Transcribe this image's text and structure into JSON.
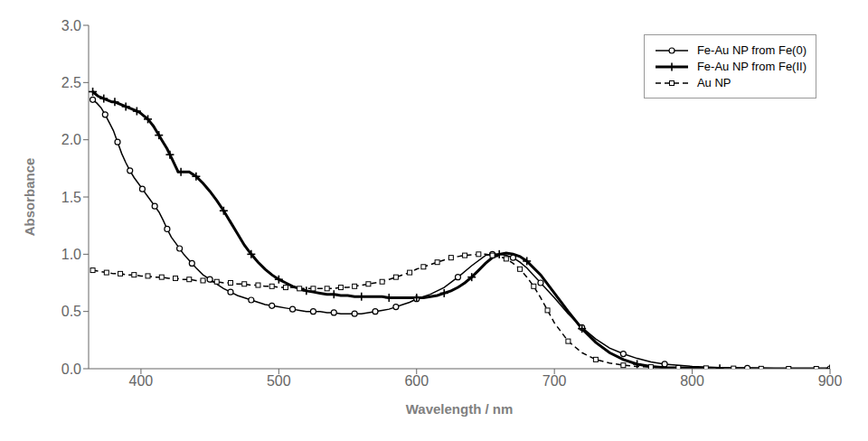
{
  "chart_data": {
    "type": "line",
    "xlabel": "Wavelength / nm",
    "ylabel": "Absorbance",
    "xlim": [
      362,
      900
    ],
    "ylim": [
      0.0,
      3.0
    ],
    "xticks": [
      400,
      500,
      600,
      700,
      800,
      900
    ],
    "yticks": [
      {
        "value": 0.0,
        "label": "0.0"
      },
      0.5,
      {
        "value": 1.0,
        "label": "1.0"
      },
      1.5,
      {
        "value": 2.0,
        "label": "2.0"
      },
      2.5,
      {
        "value": 3.0,
        "label": "3.0"
      }
    ],
    "legend": "upper right",
    "series": [
      {
        "name": "Fe-Au NP from Fe(0)",
        "color": "#000000",
        "marker": "circle",
        "line_style": "solid",
        "x": [
          365,
          368,
          371,
          374,
          377,
          380,
          383,
          386,
          389,
          392,
          395,
          398,
          401,
          404,
          407,
          410,
          413,
          416,
          419,
          422,
          425,
          428,
          431,
          434,
          437,
          440,
          445,
          450,
          455,
          460,
          465,
          470,
          475,
          480,
          485,
          490,
          495,
          500,
          505,
          510,
          515,
          520,
          525,
          530,
          535,
          540,
          545,
          550,
          555,
          560,
          565,
          570,
          575,
          580,
          585,
          590,
          595,
          600,
          610,
          620,
          630,
          640,
          650,
          655,
          660,
          665,
          670,
          675,
          680,
          690,
          700,
          710,
          720,
          730,
          740,
          750,
          760,
          770,
          780,
          800,
          820,
          840,
          860,
          880,
          900
        ],
        "values": [
          2.35,
          2.32,
          2.28,
          2.22,
          2.15,
          2.08,
          1.98,
          1.88,
          1.8,
          1.73,
          1.67,
          1.62,
          1.57,
          1.52,
          1.47,
          1.42,
          1.37,
          1.3,
          1.22,
          1.15,
          1.1,
          1.05,
          1.0,
          0.96,
          0.92,
          0.88,
          0.82,
          0.78,
          0.74,
          0.7,
          0.67,
          0.64,
          0.62,
          0.6,
          0.58,
          0.56,
          0.55,
          0.54,
          0.53,
          0.52,
          0.51,
          0.5,
          0.5,
          0.5,
          0.49,
          0.49,
          0.48,
          0.48,
          0.48,
          0.48,
          0.49,
          0.5,
          0.51,
          0.52,
          0.54,
          0.56,
          0.58,
          0.61,
          0.65,
          0.71,
          0.8,
          0.9,
          0.99,
          1.0,
          1.0,
          0.99,
          0.97,
          0.93,
          0.88,
          0.75,
          0.62,
          0.48,
          0.36,
          0.26,
          0.18,
          0.13,
          0.09,
          0.06,
          0.04,
          0.02,
          0.01,
          0.005,
          0.002,
          0.001,
          0.0
        ]
      },
      {
        "name": "Fe-Au NP from Fe(II)",
        "color": "#000000",
        "marker": "plus",
        "line_style": "solid",
        "x": [
          365,
          367,
          369,
          371,
          373,
          375,
          377,
          379,
          381,
          383,
          385,
          387,
          389,
          391,
          393,
          395,
          397,
          399,
          401,
          403,
          405,
          407,
          409,
          411,
          413,
          415,
          417,
          419,
          421,
          423,
          425,
          427,
          429,
          431,
          433,
          435,
          440,
          445,
          450,
          455,
          460,
          465,
          470,
          475,
          480,
          485,
          490,
          495,
          500,
          505,
          510,
          515,
          520,
          525,
          530,
          535,
          540,
          545,
          550,
          555,
          560,
          565,
          570,
          575,
          580,
          585,
          590,
          595,
          600,
          605,
          610,
          615,
          620,
          625,
          630,
          635,
          640,
          645,
          650,
          655,
          660,
          665,
          670,
          675,
          680,
          690,
          700,
          710,
          720,
          730,
          740,
          750,
          760,
          770,
          780,
          800,
          820,
          840,
          860,
          880,
          900
        ],
        "values": [
          2.42,
          2.4,
          2.38,
          2.37,
          2.36,
          2.35,
          2.34,
          2.33,
          2.33,
          2.32,
          2.31,
          2.3,
          2.29,
          2.28,
          2.27,
          2.26,
          2.25,
          2.24,
          2.22,
          2.2,
          2.18,
          2.15,
          2.12,
          2.08,
          2.04,
          2.0,
          1.96,
          1.92,
          1.87,
          1.82,
          1.77,
          1.72,
          1.72,
          1.72,
          1.72,
          1.72,
          1.68,
          1.62,
          1.55,
          1.47,
          1.38,
          1.28,
          1.18,
          1.08,
          1.0,
          0.93,
          0.87,
          0.82,
          0.78,
          0.75,
          0.72,
          0.7,
          0.68,
          0.67,
          0.66,
          0.65,
          0.65,
          0.64,
          0.64,
          0.63,
          0.63,
          0.63,
          0.63,
          0.63,
          0.62,
          0.62,
          0.62,
          0.62,
          0.62,
          0.62,
          0.63,
          0.64,
          0.66,
          0.68,
          0.71,
          0.75,
          0.8,
          0.86,
          0.92,
          0.97,
          1.0,
          1.01,
          1.0,
          0.98,
          0.94,
          0.82,
          0.66,
          0.5,
          0.35,
          0.23,
          0.14,
          0.08,
          0.04,
          0.02,
          0.01,
          0.005,
          0.002,
          0.001,
          0.0,
          0.0,
          0.0
        ]
      },
      {
        "name": "Au NP",
        "color": "#000000",
        "marker": "square",
        "line_style": "dashed",
        "x": [
          365,
          370,
          375,
          380,
          385,
          390,
          395,
          400,
          405,
          410,
          415,
          420,
          425,
          430,
          435,
          440,
          445,
          450,
          455,
          460,
          465,
          470,
          475,
          480,
          485,
          490,
          495,
          500,
          505,
          510,
          515,
          520,
          525,
          530,
          535,
          540,
          545,
          550,
          555,
          560,
          565,
          570,
          575,
          580,
          585,
          590,
          595,
          600,
          605,
          610,
          615,
          620,
          625,
          630,
          635,
          640,
          645,
          650,
          655,
          660,
          665,
          670,
          675,
          680,
          685,
          690,
          695,
          700,
          710,
          720,
          730,
          740,
          750,
          760,
          770,
          780,
          790,
          800,
          810,
          820,
          830,
          840,
          850,
          860,
          870,
          880,
          890,
          900
        ],
        "values": [
          0.86,
          0.85,
          0.84,
          0.83,
          0.83,
          0.82,
          0.82,
          0.81,
          0.81,
          0.8,
          0.8,
          0.79,
          0.79,
          0.78,
          0.78,
          0.77,
          0.77,
          0.76,
          0.76,
          0.75,
          0.75,
          0.74,
          0.74,
          0.73,
          0.73,
          0.72,
          0.72,
          0.71,
          0.71,
          0.71,
          0.7,
          0.7,
          0.7,
          0.7,
          0.7,
          0.7,
          0.71,
          0.71,
          0.72,
          0.73,
          0.74,
          0.75,
          0.76,
          0.78,
          0.8,
          0.82,
          0.84,
          0.87,
          0.89,
          0.91,
          0.93,
          0.95,
          0.97,
          0.98,
          0.99,
          0.995,
          1.0,
          1.0,
          0.99,
          0.98,
          0.96,
          0.92,
          0.87,
          0.8,
          0.72,
          0.62,
          0.51,
          0.4,
          0.24,
          0.14,
          0.08,
          0.05,
          0.03,
          0.02,
          0.015,
          0.01,
          0.008,
          0.006,
          0.005,
          0.004,
          0.003,
          0.002,
          0.001,
          0.001,
          0.0,
          0.0,
          0.0,
          0.0
        ]
      }
    ]
  }
}
